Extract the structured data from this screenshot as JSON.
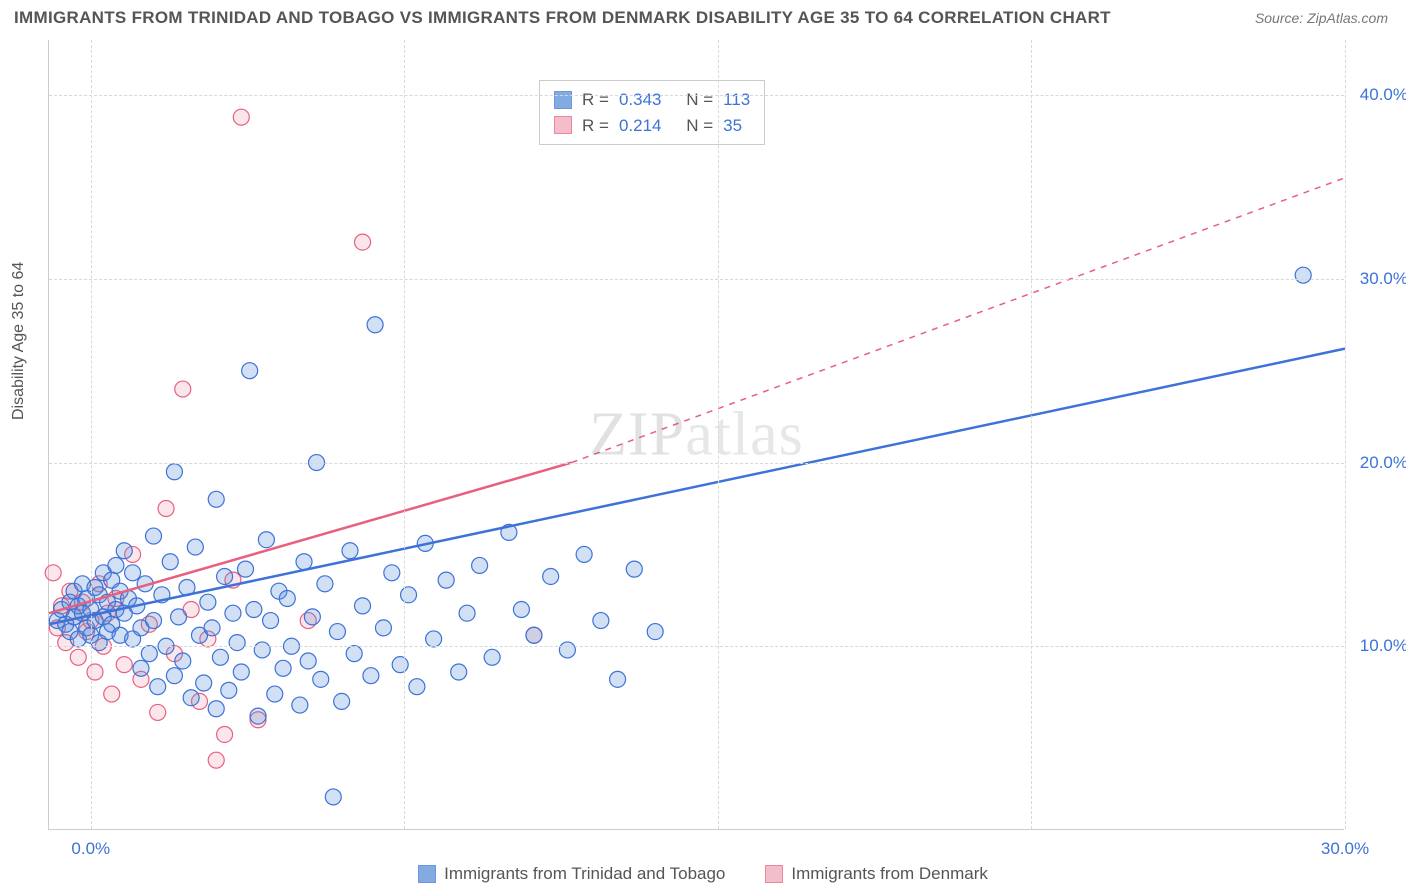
{
  "title": "IMMIGRANTS FROM TRINIDAD AND TOBAGO VS IMMIGRANTS FROM DENMARK DISABILITY AGE 35 TO 64 CORRELATION CHART",
  "source": "Source: ZipAtlas.com",
  "ylabel": "Disability Age 35 to 64",
  "watermark_z": "ZIP",
  "watermark_rest": "atlas",
  "chart": {
    "type": "scatter",
    "x_min": -1.0,
    "x_max": 30.0,
    "y_min": 0.0,
    "y_max": 43.0,
    "grid_color": "#d8d8d8",
    "background_color": "#ffffff",
    "axis_color": "#cccccc",
    "tick_label_color": "#3d72d8",
    "x_ticks": [
      0.0,
      30.0
    ],
    "x_tick_labels": [
      "0.0%",
      "30.0%"
    ],
    "x_gridlines": [
      0.0,
      7.5,
      15.0,
      22.5,
      30.0
    ],
    "y_ticks": [
      10.0,
      20.0,
      30.0,
      40.0
    ],
    "y_tick_labels": [
      "10.0%",
      "20.0%",
      "30.0%",
      "40.0%"
    ],
    "marker_radius": 8,
    "marker_stroke_width": 1.2,
    "marker_fill_opacity": 0.28,
    "trend_line_width": 2.5
  },
  "series": [
    {
      "name": "Immigrants from Trinidad and Tobago",
      "color": "#5b8fd8",
      "stroke": "#3d72d8",
      "R": "0.343",
      "N": "113",
      "trend": {
        "x1": -1.0,
        "y1": 11.2,
        "x2": 30.0,
        "y2": 26.2,
        "dash": false
      },
      "points": [
        [
          -0.8,
          11.4
        ],
        [
          -0.7,
          12.0
        ],
        [
          -0.6,
          11.2
        ],
        [
          -0.5,
          12.4
        ],
        [
          -0.5,
          10.8
        ],
        [
          -0.4,
          13.0
        ],
        [
          -0.4,
          11.6
        ],
        [
          -0.3,
          12.2
        ],
        [
          -0.3,
          10.4
        ],
        [
          -0.2,
          11.8
        ],
        [
          -0.2,
          13.4
        ],
        [
          -0.1,
          12.6
        ],
        [
          -0.1,
          11.0
        ],
        [
          0.0,
          12.0
        ],
        [
          0.0,
          10.6
        ],
        [
          0.1,
          11.4
        ],
        [
          0.1,
          13.2
        ],
        [
          0.2,
          12.8
        ],
        [
          0.2,
          10.2
        ],
        [
          0.3,
          11.6
        ],
        [
          0.3,
          14.0
        ],
        [
          0.4,
          12.4
        ],
        [
          0.4,
          10.8
        ],
        [
          0.5,
          13.6
        ],
        [
          0.5,
          11.2
        ],
        [
          0.6,
          12.0
        ],
        [
          0.6,
          14.4
        ],
        [
          0.7,
          10.6
        ],
        [
          0.7,
          13.0
        ],
        [
          0.8,
          11.8
        ],
        [
          0.8,
          15.2
        ],
        [
          0.9,
          12.6
        ],
        [
          1.0,
          10.4
        ],
        [
          1.0,
          14.0
        ],
        [
          1.1,
          12.2
        ],
        [
          1.2,
          11.0
        ],
        [
          1.2,
          8.8
        ],
        [
          1.3,
          13.4
        ],
        [
          1.4,
          9.6
        ],
        [
          1.5,
          16.0
        ],
        [
          1.5,
          11.4
        ],
        [
          1.6,
          7.8
        ],
        [
          1.7,
          12.8
        ],
        [
          1.8,
          10.0
        ],
        [
          1.9,
          14.6
        ],
        [
          2.0,
          8.4
        ],
        [
          2.0,
          19.5
        ],
        [
          2.1,
          11.6
        ],
        [
          2.2,
          9.2
        ],
        [
          2.3,
          13.2
        ],
        [
          2.4,
          7.2
        ],
        [
          2.5,
          15.4
        ],
        [
          2.6,
          10.6
        ],
        [
          2.7,
          8.0
        ],
        [
          2.8,
          12.4
        ],
        [
          2.9,
          11.0
        ],
        [
          3.0,
          6.6
        ],
        [
          3.0,
          18.0
        ],
        [
          3.1,
          9.4
        ],
        [
          3.2,
          13.8
        ],
        [
          3.3,
          7.6
        ],
        [
          3.4,
          11.8
        ],
        [
          3.5,
          10.2
        ],
        [
          3.6,
          8.6
        ],
        [
          3.7,
          14.2
        ],
        [
          3.8,
          25.0
        ],
        [
          3.9,
          12.0
        ],
        [
          4.0,
          6.2
        ],
        [
          4.1,
          9.8
        ],
        [
          4.2,
          15.8
        ],
        [
          4.3,
          11.4
        ],
        [
          4.4,
          7.4
        ],
        [
          4.5,
          13.0
        ],
        [
          4.6,
          8.8
        ],
        [
          4.7,
          12.6
        ],
        [
          4.8,
          10.0
        ],
        [
          5.0,
          6.8
        ],
        [
          5.1,
          14.6
        ],
        [
          5.2,
          9.2
        ],
        [
          5.3,
          11.6
        ],
        [
          5.4,
          20.0
        ],
        [
          5.5,
          8.2
        ],
        [
          5.6,
          13.4
        ],
        [
          5.8,
          1.8
        ],
        [
          5.9,
          10.8
        ],
        [
          6.0,
          7.0
        ],
        [
          6.2,
          15.2
        ],
        [
          6.3,
          9.6
        ],
        [
          6.5,
          12.2
        ],
        [
          6.7,
          8.4
        ],
        [
          6.8,
          27.5
        ],
        [
          7.0,
          11.0
        ],
        [
          7.2,
          14.0
        ],
        [
          7.4,
          9.0
        ],
        [
          7.6,
          12.8
        ],
        [
          7.8,
          7.8
        ],
        [
          8.0,
          15.6
        ],
        [
          8.2,
          10.4
        ],
        [
          8.5,
          13.6
        ],
        [
          8.8,
          8.6
        ],
        [
          9.0,
          11.8
        ],
        [
          9.3,
          14.4
        ],
        [
          9.6,
          9.4
        ],
        [
          10.0,
          16.2
        ],
        [
          10.3,
          12.0
        ],
        [
          10.6,
          10.6
        ],
        [
          11.0,
          13.8
        ],
        [
          11.4,
          9.8
        ],
        [
          11.8,
          15.0
        ],
        [
          12.2,
          11.4
        ],
        [
          12.6,
          8.2
        ],
        [
          13.0,
          14.2
        ],
        [
          13.5,
          10.8
        ],
        [
          29.0,
          30.2
        ]
      ]
    },
    {
      "name": "Immigrants from Denmark",
      "color": "#f0a8b8",
      "stroke": "#e8607f",
      "R": "0.214",
      "N": "35",
      "trend": {
        "x1": -1.0,
        "y1": 11.8,
        "x2": 11.5,
        "y2": 20.0,
        "dash": false
      },
      "trend_ext": {
        "x1": 11.5,
        "y1": 20.0,
        "x2": 30.0,
        "y2": 35.5,
        "dash": true
      },
      "points": [
        [
          -0.9,
          14.0
        ],
        [
          -0.8,
          11.0
        ],
        [
          -0.7,
          12.2
        ],
        [
          -0.6,
          10.2
        ],
        [
          -0.5,
          13.0
        ],
        [
          -0.4,
          11.6
        ],
        [
          -0.3,
          9.4
        ],
        [
          -0.2,
          12.4
        ],
        [
          -0.1,
          10.8
        ],
        [
          0.0,
          11.4
        ],
        [
          0.1,
          8.6
        ],
        [
          0.2,
          13.4
        ],
        [
          0.3,
          10.0
        ],
        [
          0.4,
          11.8
        ],
        [
          0.5,
          7.4
        ],
        [
          0.6,
          12.6
        ],
        [
          0.8,
          9.0
        ],
        [
          1.0,
          15.0
        ],
        [
          1.2,
          8.2
        ],
        [
          1.4,
          11.2
        ],
        [
          1.6,
          6.4
        ],
        [
          1.8,
          17.5
        ],
        [
          2.0,
          9.6
        ],
        [
          2.2,
          24.0
        ],
        [
          2.4,
          12.0
        ],
        [
          2.6,
          7.0
        ],
        [
          2.8,
          10.4
        ],
        [
          3.0,
          3.8
        ],
        [
          3.2,
          5.2
        ],
        [
          3.4,
          13.6
        ],
        [
          3.6,
          38.8
        ],
        [
          4.0,
          6.0
        ],
        [
          5.2,
          11.4
        ],
        [
          6.5,
          32.0
        ],
        [
          10.6,
          10.6
        ]
      ]
    }
  ],
  "stats_labels": {
    "R": "R =",
    "N": "N ="
  },
  "legend_labels": {
    "series1": "Immigrants from Trinidad and Tobago",
    "series2": "Immigrants from Denmark"
  }
}
